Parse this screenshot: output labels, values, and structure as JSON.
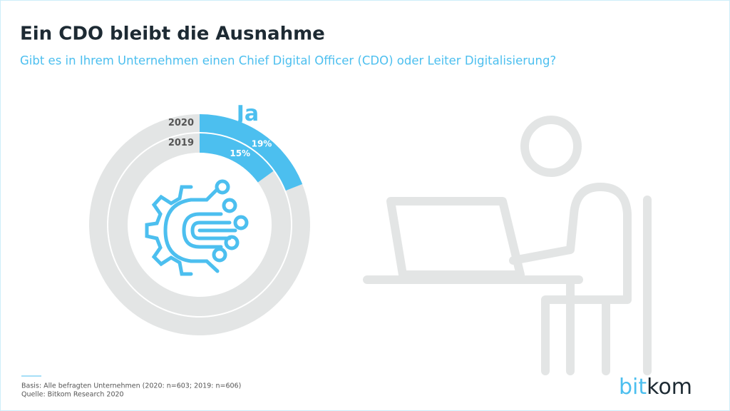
{
  "chart_data": {
    "type": "donut",
    "title": "Ein CDO bleibt die Ausnahme",
    "subtitle": "Gibt es in Ihrem Unternehmen einen Chief Digital Officer (CDO) oder Leiter Digitalisierung?",
    "categories": [
      "Ja"
    ],
    "series": [
      {
        "name": "2020",
        "color": "#4cbfef",
        "values": [
          19
        ],
        "value_labels": [
          "19%"
        ]
      },
      {
        "name": "2019",
        "color": "#4cbfef",
        "values": [
          15
        ],
        "value_labels": [
          "15%"
        ]
      }
    ],
    "footnotes": [
      "Basis: Alle befragten Unternehmen (2020: n=603; 2019: n=606)",
      "Quelle: Bitkom Research 2020"
    ]
  },
  "logo": [
    "bit",
    "kom"
  ]
}
